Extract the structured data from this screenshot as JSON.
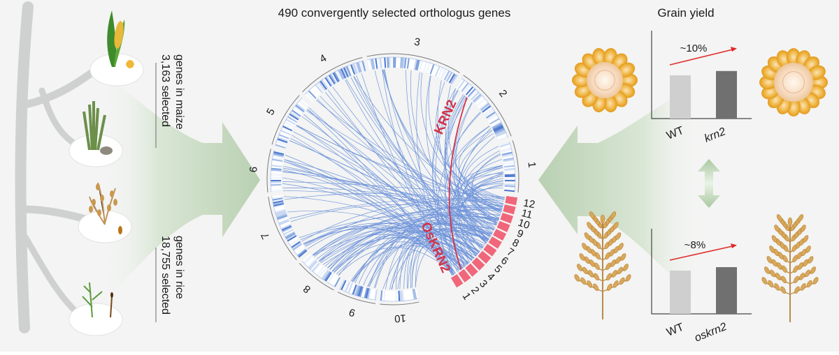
{
  "title": "490 convergently selected orthologus genes",
  "left": {
    "maize_count": "3,163 selected",
    "maize_desc": "genes in maize",
    "rice_count": "18,755 selected",
    "rice_desc": "genes in rice"
  },
  "circos": {
    "maize_chromosomes": [
      "1",
      "2",
      "3",
      "4",
      "5",
      "6",
      "7",
      "8",
      "9",
      "10"
    ],
    "rice_chromosomes": [
      "1",
      "2",
      "3",
      "4",
      "5",
      "6",
      "7",
      "8",
      "9",
      "10",
      "11",
      "12"
    ],
    "maize_gene": "KRN2",
    "rice_gene": "OsKRN2"
  },
  "right": {
    "title": "Grain yield",
    "maize_change": "~10%",
    "rice_change": "~8%",
    "maize_wt": "WT",
    "maize_mutant": "krn2",
    "rice_wt": "WT",
    "rice_mutant": "oskrn2"
  },
  "chart_data": [
    {
      "type": "bar",
      "categories": [
        "WT",
        "krn2"
      ],
      "values": [
        1.0,
        1.1
      ],
      "annotation": "~10%"
    },
    {
      "type": "bar",
      "categories": [
        "WT",
        "oskrn2"
      ],
      "values": [
        1.0,
        1.08
      ],
      "annotation": "~8%"
    }
  ],
  "colors": {
    "link": "#5b85d6",
    "highlight": "#d4334a",
    "rice_block": "#f0667a",
    "arrow": "#c9dbc4",
    "bar_wt": "#cfcfcf",
    "bar_mut": "#707070",
    "trend": "#e02a2a"
  }
}
